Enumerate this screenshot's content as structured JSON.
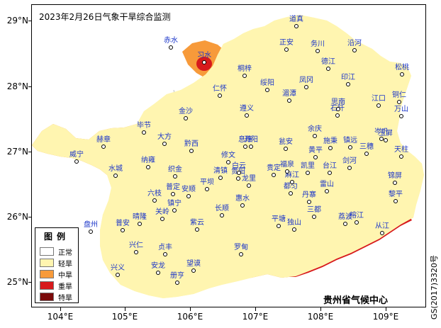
{
  "title": "2023年2月26日气象干旱综合监测",
  "latitude_ticks": [
    "29°N",
    "28°N",
    "27°N",
    "26°N",
    "25°N"
  ],
  "longitude_ticks": [
    "104°E",
    "105°E",
    "106°E",
    "107°E",
    "108°E",
    "109°E"
  ],
  "legend": {
    "title": "图例",
    "items": [
      {
        "label": "正常",
        "color": "#ffffff"
      },
      {
        "label": "轻旱",
        "color": "#fff5b0"
      },
      {
        "label": "中旱",
        "color": "#f79a3a"
      },
      {
        "label": "重旱",
        "color": "#d7191c"
      },
      {
        "label": "特旱",
        "color": "#7a0a0a"
      }
    ]
  },
  "colors": {
    "normal": "#ffffff",
    "light": "#fff5b0",
    "moderate": "#f79a3a",
    "severe": "#d7191c",
    "extreme": "#7a0a0a",
    "province_border": "#000000",
    "county_border": "#b0b0b0",
    "city_label": "#1a35c9"
  },
  "cities": [
    "赤水",
    "习水",
    "桐梓",
    "正安",
    "道真",
    "务川",
    "沿河",
    "松桃",
    "德江",
    "印江",
    "绥阳",
    "凤冈",
    "湄潭",
    "思南",
    "江口",
    "铜仁",
    "万山",
    "仁怀",
    "金沙",
    "遵义",
    "石阡",
    "毕节",
    "大方",
    "黔西",
    "余庆",
    "施秉",
    "镇远",
    "岑巩",
    "玉屏",
    "三穗",
    "天柱",
    "赫章",
    "威宁",
    "纳雍",
    "织金",
    "息烽",
    "开阳",
    "修文",
    "瓮安",
    "黄平",
    "清镇",
    "白云",
    "贵阳",
    "龙里",
    "福泉",
    "麻江",
    "凯里",
    "台江",
    "剑河",
    "锦屏",
    "黎平",
    "雷山",
    "榕江",
    "从江",
    "丹寨",
    "三都",
    "都匀",
    "贵定",
    "平坝",
    "长顺",
    "惠水",
    "平塘",
    "独山",
    "荔波",
    "罗甸",
    "六枝",
    "安顺",
    "普定",
    "镇宁",
    "关岭",
    "晴隆",
    "紫云",
    "水城",
    "盘州",
    "兴仁",
    "兴义",
    "普安",
    "安龙",
    "贞丰",
    "望谟",
    "册亨"
  ],
  "agency": "贵州省气候中心",
  "map_code": "GS(2017)3320号"
}
